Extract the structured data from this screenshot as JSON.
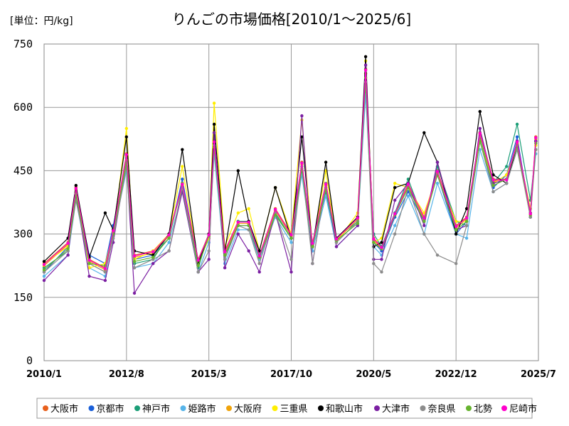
{
  "chart_data": {
    "type": "line",
    "title": "りんごの市場価格[2010/1～2025/6]",
    "unit_label": "[単位：円/kg]",
    "ylim": [
      0,
      750
    ],
    "yticks": [
      0,
      150,
      300,
      450,
      600,
      750
    ],
    "xlim": [
      "2010/1",
      "2025/7"
    ],
    "xticks": [
      "2010/1",
      "2012/8",
      "2015/3",
      "2017/10",
      "2020/5",
      "2022/12",
      "2025/7"
    ],
    "grid": true,
    "legend_position": "bottom",
    "x_keyframes": [
      "2010/1",
      "2010/10",
      "2011/1",
      "2011/6",
      "2011/12",
      "2012/3",
      "2012/8",
      "2012/11",
      "2013/6",
      "2013/12",
      "2014/5",
      "2014/11",
      "2015/3",
      "2015/5",
      "2015/9",
      "2016/2",
      "2016/6",
      "2016/10",
      "2017/4",
      "2017/10",
      "2018/2",
      "2018/6",
      "2018/11",
      "2019/3",
      "2019/11",
      "2020/2",
      "2020/5",
      "2020/8",
      "2021/1",
      "2021/6",
      "2021/12",
      "2022/5",
      "2022/12",
      "2023/4",
      "2023/9",
      "2024/2",
      "2024/7",
      "2024/11",
      "2025/4",
      "2025/6"
    ],
    "series": [
      {
        "name": "大阪市",
        "color": "#e8601c",
        "values": [
          230,
          280,
          410,
          240,
          220,
          310,
          490,
          250,
          260,
          300,
          420,
          240,
          300,
          520,
          260,
          330,
          330,
          250,
          360,
          300,
          470,
          280,
          420,
          290,
          340,
          690,
          290,
          270,
          350,
          420,
          340,
          450,
          320,
          340,
          540,
          430,
          430,
          520,
          350,
          530
        ]
      },
      {
        "name": "京都市",
        "color": "#1a5fd9",
        "values": [
          210,
          270,
          400,
          250,
          230,
          320,
          470,
          240,
          250,
          290,
          430,
          230,
          290,
          500,
          250,
          320,
          320,
          240,
          350,
          290,
          450,
          270,
          400,
          280,
          330,
          660,
          280,
          260,
          340,
          400,
          330,
          440,
          300,
          330,
          520,
          410,
          440,
          530,
          340,
          520
        ]
      },
      {
        "name": "神戸市",
        "color": "#1b9e77",
        "values": [
          220,
          260,
          390,
          230,
          210,
          310,
          480,
          230,
          240,
          300,
          410,
          220,
          300,
          510,
          240,
          330,
          330,
          250,
          350,
          290,
          460,
          270,
          410,
          290,
          330,
          650,
          300,
          270,
          350,
          430,
          330,
          460,
          330,
          320,
          530,
          420,
          460,
          560,
          380,
          500
        ]
      },
      {
        "name": "姫路市",
        "color": "#56b4e9",
        "values": [
          200,
          250,
          380,
          220,
          200,
          300,
          450,
          220,
          230,
          280,
          400,
          210,
          280,
          490,
          230,
          310,
          310,
          240,
          340,
          280,
          440,
          260,
          390,
          270,
          320,
          630,
          270,
          250,
          320,
          390,
          300,
          420,
          300,
          290,
          500,
          400,
          420,
          500,
          360,
          490
        ]
      },
      {
        "name": "大阪府",
        "color": "#f0a30a",
        "values": [
          225,
          275,
          405,
          235,
          215,
          305,
          485,
          245,
          255,
          295,
          415,
          235,
          295,
          515,
          255,
          325,
          325,
          245,
          355,
          295,
          465,
          275,
          415,
          285,
          335,
          680,
          285,
          265,
          345,
          415,
          335,
          445,
          315,
          335,
          535,
          425,
          430,
          515,
          345,
          525
        ]
      },
      {
        "name": "三重県",
        "color": "#ffee00",
        "values": [
          230,
          270,
          400,
          220,
          230,
          300,
          550,
          240,
          260,
          300,
          460,
          230,
          290,
          610,
          270,
          350,
          360,
          260,
          410,
          300,
          570,
          270,
          450,
          280,
          350,
          710,
          280,
          290,
          420,
          410,
          350,
          440,
          330,
          330,
          520,
          420,
          440,
          510,
          360,
          510
        ]
      },
      {
        "name": "和歌山市",
        "color": "#000000",
        "values": [
          235,
          290,
          415,
          245,
          350,
          310,
          530,
          260,
          250,
          300,
          500,
          230,
          300,
          560,
          260,
          450,
          330,
          260,
          410,
          290,
          530,
          270,
          470,
          290,
          340,
          720,
          270,
          280,
          410,
          420,
          540,
          470,
          300,
          360,
          590,
          440,
          420,
          510,
          340,
          520
        ]
      },
      {
        "name": "大津市",
        "color": "#7b1fa2",
        "values": [
          190,
          250,
          395,
          200,
          190,
          280,
          470,
          160,
          230,
          260,
          400,
          210,
          240,
          540,
          220,
          300,
          260,
          210,
          350,
          210,
          580,
          230,
          420,
          270,
          320,
          700,
          240,
          240,
          380,
          420,
          320,
          470,
          310,
          320,
          550,
          420,
          430,
          520,
          350,
          520
        ]
      },
      {
        "name": "奈良県",
        "color": "#8c8c8c",
        "values": [
          210,
          260,
          380,
          230,
          210,
          290,
          460,
          220,
          240,
          260,
          410,
          210,
          260,
          510,
          240,
          320,
          310,
          230,
          350,
          240,
          460,
          230,
          420,
          280,
          330,
          660,
          230,
          210,
          300,
          410,
          300,
          250,
          230,
          320,
          520,
          400,
          420,
          500,
          340,
          500
        ]
      },
      {
        "name": "北勢",
        "color": "#66b32e",
        "values": [
          215,
          265,
          395,
          230,
          225,
          300,
          470,
          235,
          245,
          290,
          420,
          225,
          295,
          505,
          250,
          320,
          320,
          245,
          345,
          290,
          455,
          270,
          405,
          285,
          325,
          670,
          280,
          265,
          345,
          410,
          330,
          440,
          310,
          330,
          520,
          415,
          430,
          510,
          345,
          515
        ]
      },
      {
        "name": "尼崎市",
        "color": "#ff00cc",
        "values": [
          228,
          278,
          408,
          238,
          218,
          308,
          488,
          248,
          258,
          298,
          418,
          238,
          298,
          518,
          258,
          328,
          328,
          248,
          358,
          298,
          468,
          278,
          418,
          288,
          338,
          688,
          288,
          268,
          348,
          418,
          338,
          448,
          318,
          338,
          538,
          428,
          428,
          518,
          348,
          528
        ]
      }
    ]
  }
}
